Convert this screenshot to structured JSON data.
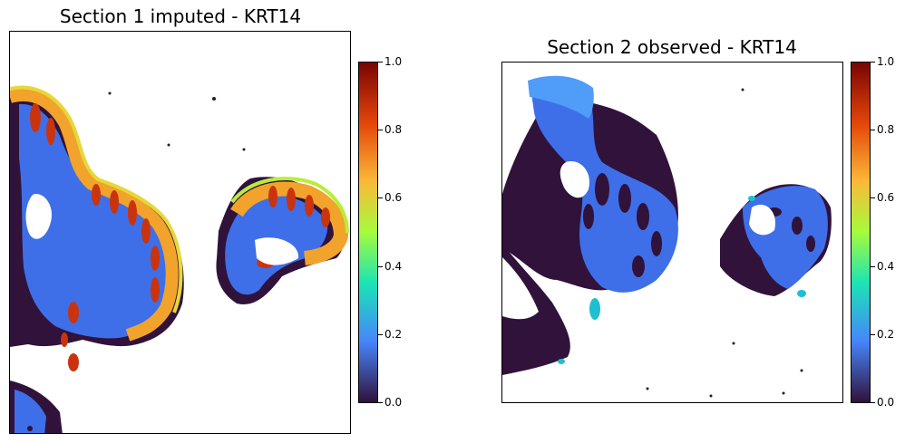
{
  "chart_data": [
    {
      "type": "heatmap",
      "title": "Section 1 imputed - KRT14",
      "xlabel": "",
      "ylabel": "",
      "colormap": "turbo",
      "colorbar": {
        "vmin": 0.0,
        "vmax": 1.0,
        "ticks": [
          "0.0",
          "0.2",
          "0.4",
          "0.6",
          "0.8",
          "1.0"
        ]
      },
      "description_colors": [
        "#30123b",
        "#4686fb",
        "#1ae4b6",
        "#a4fc3c",
        "#fbb938",
        "#e4460a",
        "#7a0403"
      ]
    },
    {
      "type": "heatmap",
      "title": "Section 2 observed - KRT14",
      "xlabel": "",
      "ylabel": "",
      "colormap": "turbo",
      "colorbar": {
        "vmin": 0.0,
        "vmax": 1.0,
        "ticks": [
          "0.0",
          "0.2",
          "0.4",
          "0.6",
          "0.8",
          "1.0"
        ]
      }
    }
  ]
}
